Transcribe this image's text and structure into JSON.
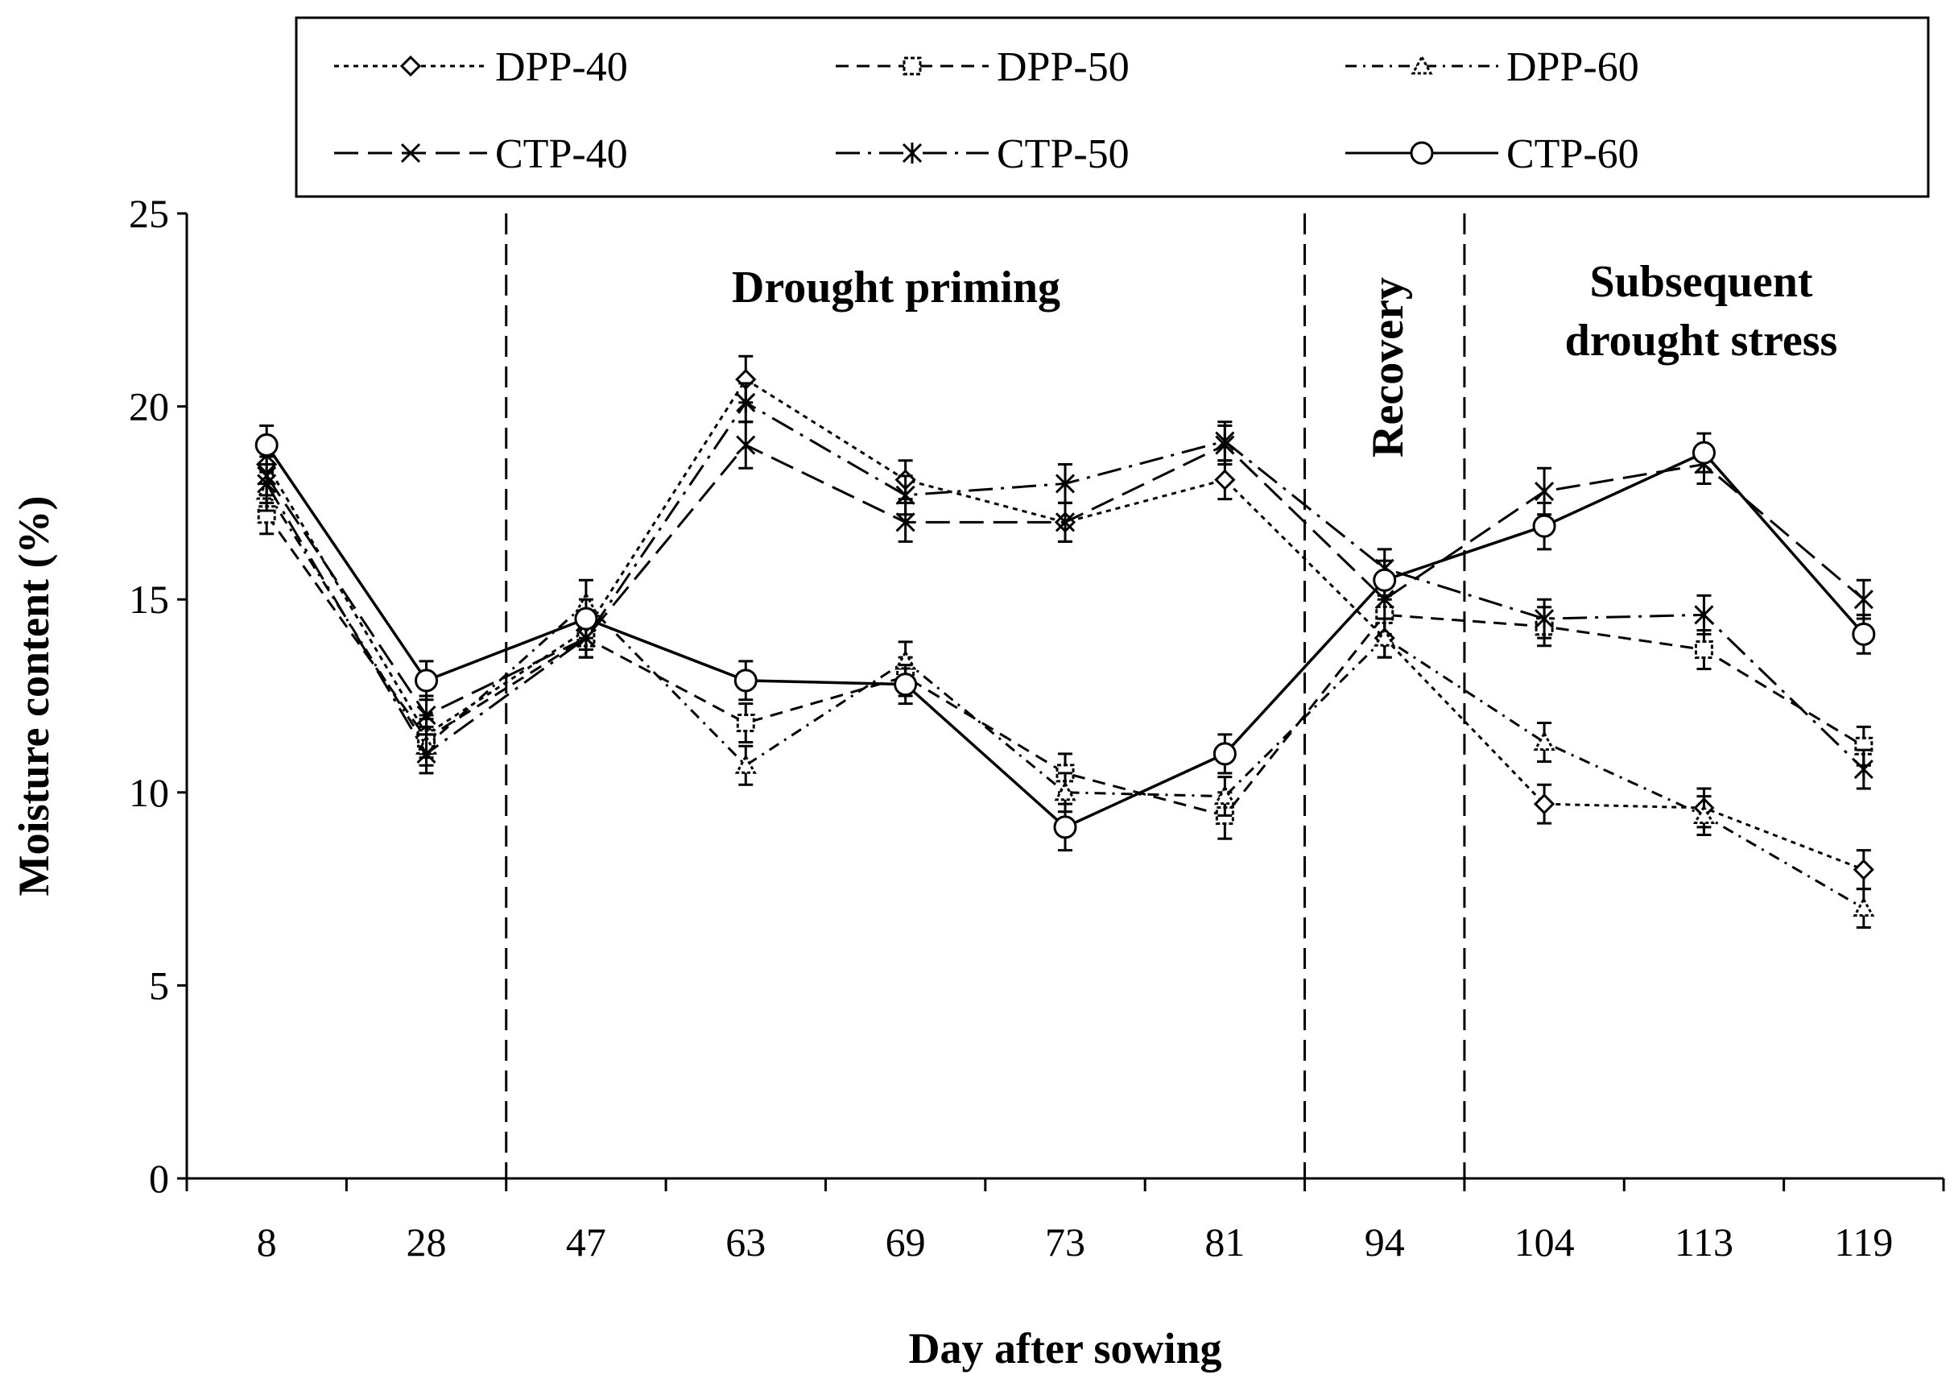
{
  "chart_data": {
    "type": "line",
    "title": "",
    "xlabel": "Day after sowing",
    "ylabel": "Moisture content (%)",
    "categories": [
      "8",
      "28",
      "47",
      "63",
      "69",
      "73",
      "81",
      "94",
      "104",
      "113",
      "119"
    ],
    "ylim": [
      0,
      25
    ],
    "yticks": [
      "0",
      "5",
      "10",
      "15",
      "20",
      "25"
    ],
    "grid": false,
    "legend_position": "top",
    "series": [
      {
        "name": "DPP-40",
        "marker": "diamond",
        "dash": "dotted",
        "values": [
          18.5,
          11.5,
          14.2,
          20.7,
          18.1,
          17.0,
          18.1,
          14.0,
          9.7,
          9.6,
          8.0
        ],
        "errors": [
          0.5,
          0.5,
          0.5,
          0.6,
          0.5,
          0.5,
          0.5,
          0.5,
          0.5,
          0.5,
          0.5
        ]
      },
      {
        "name": "DPP-50",
        "marker": "square",
        "dash": "dashed",
        "values": [
          17.2,
          11.4,
          14.0,
          11.8,
          13.0,
          10.5,
          9.4,
          14.6,
          14.3,
          13.7,
          11.2
        ],
        "errors": [
          0.5,
          0.5,
          0.5,
          0.5,
          0.5,
          0.5,
          0.6,
          0.5,
          0.5,
          0.5,
          0.5
        ]
      },
      {
        "name": "DPP-60",
        "marker": "triangle",
        "dash": "dashdot",
        "values": [
          17.8,
          11.2,
          14.9,
          10.7,
          13.4,
          10.0,
          9.9,
          14.0,
          11.3,
          9.4,
          7.0
        ],
        "errors": [
          0.5,
          0.5,
          0.6,
          0.5,
          0.5,
          0.5,
          0.5,
          0.5,
          0.5,
          0.5,
          0.5
        ]
      },
      {
        "name": "CTP-40",
        "marker": "x",
        "dash": "longdash",
        "values": [
          18.2,
          12.0,
          14.0,
          19.0,
          17.0,
          17.0,
          19.0,
          15.0,
          17.8,
          18.5,
          15.0
        ],
        "errors": [
          0.5,
          0.5,
          0.5,
          0.6,
          0.5,
          0.5,
          0.5,
          0.5,
          0.6,
          0.5,
          0.5
        ]
      },
      {
        "name": "CTP-50",
        "marker": "asterisk",
        "dash": "longdashdot",
        "values": [
          18.0,
          11.0,
          14.0,
          20.1,
          17.7,
          18.0,
          19.1,
          15.8,
          14.5,
          14.6,
          10.6
        ],
        "errors": [
          0.5,
          0.5,
          0.5,
          0.5,
          0.5,
          0.5,
          0.5,
          0.5,
          0.5,
          0.5,
          0.5
        ]
      },
      {
        "name": "CTP-60",
        "marker": "circle",
        "dash": "solid",
        "values": [
          19.0,
          12.9,
          14.5,
          12.9,
          12.8,
          9.1,
          11.0,
          15.5,
          16.9,
          18.8,
          14.1
        ],
        "errors": [
          0.5,
          0.5,
          0.5,
          0.5,
          0.5,
          0.6,
          0.5,
          0.5,
          0.6,
          0.5,
          0.5
        ]
      }
    ],
    "phase_dividers": [
      {
        "after_category_index": 1,
        "name": "divider-1"
      },
      {
        "after_category_index": 6,
        "name": "divider-2"
      },
      {
        "after_category_index": 7,
        "name": "divider-3"
      }
    ],
    "annotations": {
      "drought_priming": "Drought priming",
      "recovery": "Recovery",
      "subsequent_line1": "Subsequent",
      "subsequent_line2": "drought stress"
    }
  }
}
